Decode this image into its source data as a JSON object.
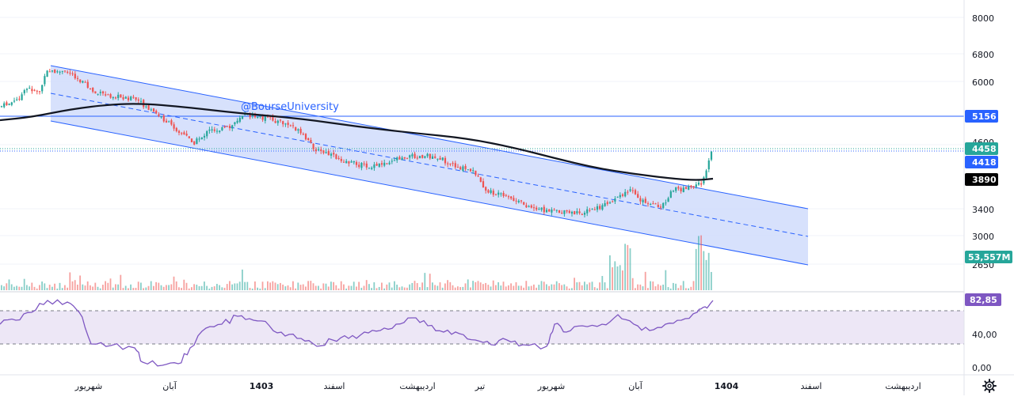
{
  "watermark": "@BourseUniversity",
  "colors": {
    "up": "#26a69a",
    "down": "#ef5350",
    "channel_fill": "#d0dcfb",
    "channel_line": "#2962ff",
    "ma_line": "#131722",
    "rsi_line": "#7e57c2",
    "rsi_band": "#ede7f6",
    "badge_blue": "#2962ff",
    "badge_green": "#26a69a",
    "badge_black": "#000000",
    "badge_purple": "#7e57c2"
  },
  "chart_data": [
    {
      "type": "candlestick",
      "scale": "log",
      "y_ticks": [
        "8000",
        "6800",
        "6000",
        "5156",
        "4600",
        "4458",
        "4418",
        "3890",
        "3400",
        "3000",
        "2650"
      ],
      "badges": [
        {
          "value": "5156",
          "color": "#2962ff"
        },
        {
          "value": "4458",
          "color": "#26a69a"
        },
        {
          "value": "4418",
          "color": "#2962ff"
        },
        {
          "value": "3890",
          "color": "#000000"
        }
      ],
      "horizontal_line": 5156,
      "last_close": 4458,
      "moving_average_last": 3890,
      "channel": {
        "upper_end": 3400,
        "lower_end": 2650,
        "middle_end": 3000
      }
    },
    {
      "type": "bar",
      "name": "volume",
      "last_value": "53,557M"
    },
    {
      "type": "line",
      "name": "RSI",
      "y_ticks": [
        "40,00",
        "0,00"
      ],
      "band": [
        30,
        70
      ],
      "last_value": "82,85"
    }
  ],
  "x_axis": {
    "labels": [
      "شهریور",
      "آبان",
      "1403",
      "اسفند",
      "اردیبهشت",
      "تیر",
      "شهریور",
      "آبان",
      "1404",
      "اسفند",
      "اردیبهشت"
    ]
  },
  "settings_icon": "gear-icon"
}
